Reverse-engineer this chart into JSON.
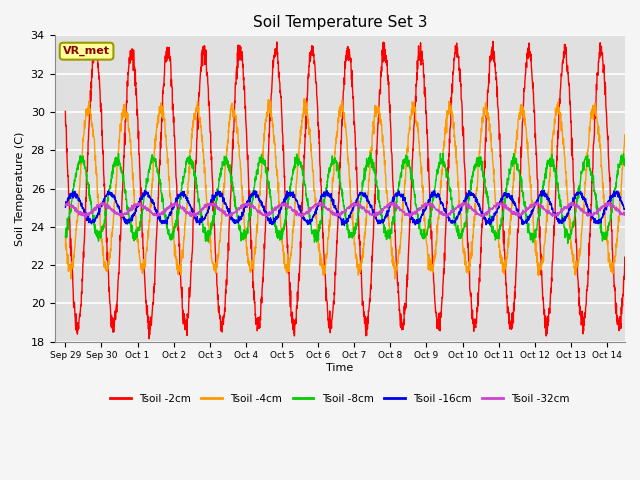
{
  "title": "Soil Temperature Set 3",
  "xlabel": "Time",
  "ylabel": "Soil Temperature (C)",
  "ylim": [
    18,
    34
  ],
  "background_color": "#e0e0e0",
  "grid_color": "white",
  "annotation_text": "VR_met",
  "annotation_bg": "#ffff99",
  "annotation_border": "#999900",
  "x_tick_labels": [
    "Sep 29",
    "Sep 30",
    "Oct 1",
    "Oct 2",
    "Oct 3",
    "Oct 4",
    "Oct 5",
    "Oct 6",
    "Oct 7",
    "Oct 8",
    "Oct 9",
    "Oct 10",
    "Oct 11",
    "Oct 12",
    "Oct 13",
    "Oct 14"
  ],
  "legend_labels": [
    "Tsoil -2cm",
    "Tsoil -4cm",
    "Tsoil -8cm",
    "Tsoil -16cm",
    "Tsoil -32cm"
  ],
  "line_colors": [
    "#ff0000",
    "#ff9900",
    "#00cc00",
    "#0000ee",
    "#cc44cc"
  ],
  "n_days": 15.5,
  "points_per_day": 144,
  "mean_2cm": 26.0,
  "amp_2cm": 7.2,
  "phase_2cm": 0.0,
  "mean_4cm": 26.0,
  "amp_4cm": 4.2,
  "phase_4cm": 1.2,
  "mean_8cm": 25.5,
  "amp_8cm": 2.0,
  "phase_8cm": 2.5,
  "mean_16cm": 25.0,
  "amp_16cm": 0.75,
  "phase_16cm": 3.8,
  "mean_32cm": 24.9,
  "amp_32cm": 0.28,
  "phase_32cm": 5.0,
  "yticks": [
    18,
    20,
    22,
    24,
    26,
    28,
    30,
    32,
    34
  ]
}
